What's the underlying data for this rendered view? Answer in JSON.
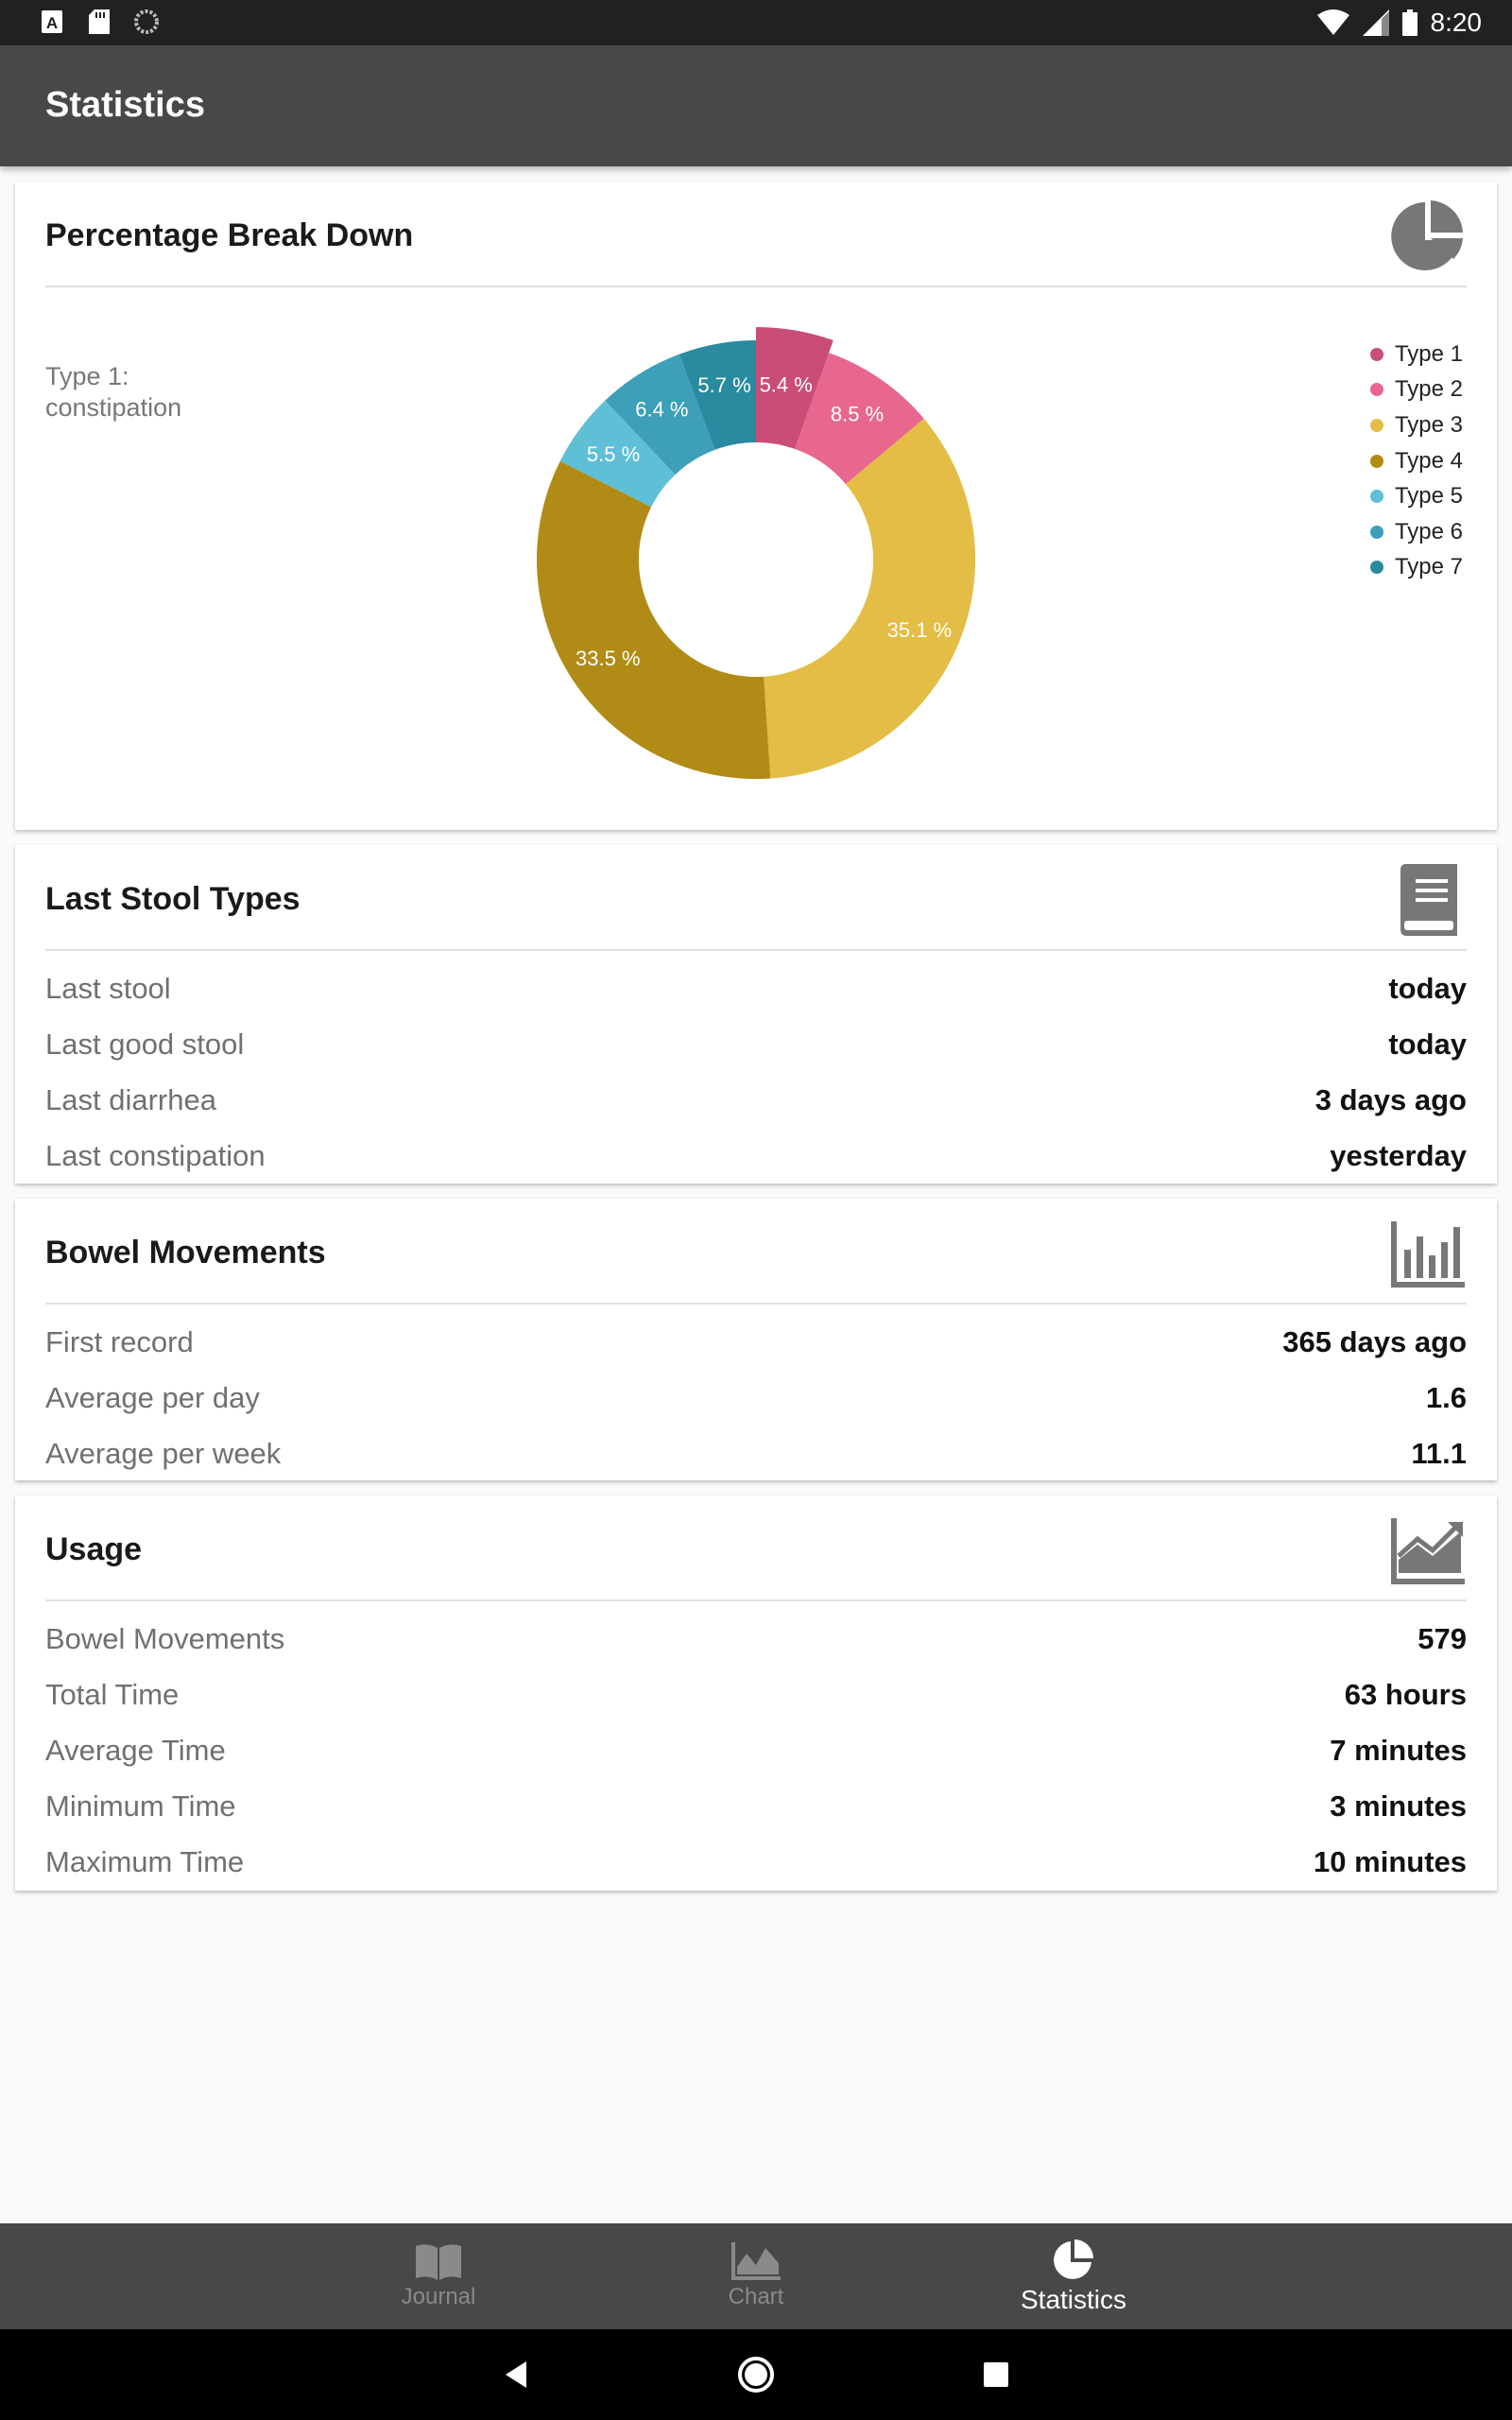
{
  "status_bar": {
    "time": "8:20",
    "left_icons": [
      "a-icon",
      "sd-card-icon",
      "sync-icon"
    ],
    "right_icons": [
      "wifi-icon",
      "signal-icon",
      "battery-icon"
    ]
  },
  "app_bar": {
    "title": "Statistics"
  },
  "percentage_card": {
    "title": "Percentage Break Down",
    "icon": "pie-chart-icon",
    "caption_line1": "Type 1:",
    "caption_line2": "constipation"
  },
  "chart_data": {
    "type": "pie",
    "style": "donut",
    "title": "",
    "categories": [
      "Type 1",
      "Type 2",
      "Type 3",
      "Type 4",
      "Type 5",
      "Type 6",
      "Type 7"
    ],
    "values": [
      5.4,
      8.5,
      35.1,
      33.5,
      5.5,
      6.4,
      5.7
    ],
    "labels": [
      "5.4 %",
      "8.5 %",
      "35.1 %",
      "33.5 %",
      "5.5 %",
      "6.4 %",
      "5.7 %"
    ],
    "colors": [
      "#c94d76",
      "#e8678f",
      "#e3bd45",
      "#b08c16",
      "#5fbfd6",
      "#3e9fb8",
      "#2a8aa0"
    ],
    "selected_category": "Type 1",
    "legend_position": "top-right"
  },
  "last_stool_card": {
    "title": "Last Stool Types",
    "icon": "book-icon",
    "rows": [
      {
        "label": "Last stool",
        "value": "today"
      },
      {
        "label": "Last good stool",
        "value": "today"
      },
      {
        "label": "Last diarrhea",
        "value": "3 days ago"
      },
      {
        "label": "Last constipation",
        "value": "yesterday"
      }
    ]
  },
  "bowel_card": {
    "title": "Bowel Movements",
    "icon": "bar-chart-icon",
    "rows": [
      {
        "label": "First record",
        "value": "365 days ago"
      },
      {
        "label": "Average per day",
        "value": "1.6"
      },
      {
        "label": "Average per week",
        "value": "11.1"
      }
    ]
  },
  "usage_card": {
    "title": "Usage",
    "icon": "line-chart-icon",
    "rows": [
      {
        "label": "Bowel Movements",
        "value": "579"
      },
      {
        "label": "Total Time",
        "value": "63 hours"
      },
      {
        "label": "Average Time",
        "value": "7 minutes"
      },
      {
        "label": "Minimum Time",
        "value": "3 minutes"
      },
      {
        "label": "Maximum Time",
        "value": "10 minutes"
      }
    ]
  },
  "bottom_nav": {
    "items": [
      {
        "label": "Journal",
        "icon": "journal-icon",
        "active": false
      },
      {
        "label": "Chart",
        "icon": "chart-icon",
        "active": false
      },
      {
        "label": "Statistics",
        "icon": "statistics-icon",
        "active": true
      }
    ]
  },
  "system_nav": {
    "buttons": [
      "back-icon",
      "home-icon",
      "recents-icon"
    ]
  }
}
